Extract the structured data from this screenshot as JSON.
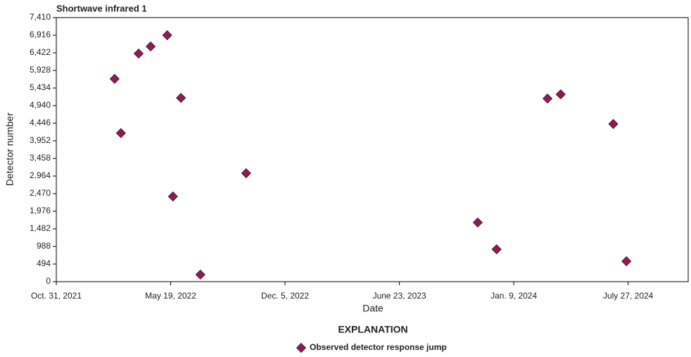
{
  "chart_data": {
    "type": "scatter",
    "title": "Shortwave infrared 1",
    "x_label": "Date",
    "y_label": "Detector number",
    "legend_title": "EXPLANATION",
    "xlim": [
      "2021-10-31",
      "2024-11-09"
    ],
    "xticks": [
      {
        "value": "2021-10-31",
        "label": "Oct. 31, 2021"
      },
      {
        "value": "2022-05-19",
        "label": "May 19, 2022"
      },
      {
        "value": "2022-12-05",
        "label": "Dec. 5, 2022"
      },
      {
        "value": "2023-06-23",
        "label": "June 23, 2023"
      },
      {
        "value": "2024-01-09",
        "label": "Jan. 9, 2024"
      },
      {
        "value": "2024-07-27",
        "label": "July 27, 2024"
      }
    ],
    "ylim": [
      0,
      7410
    ],
    "yticks": [
      0,
      494,
      988,
      {
        "value": 1482,
        "label": "1,482"
      },
      {
        "value": 1976,
        "label": "1,976"
      },
      {
        "value": 2470,
        "label": "2,470"
      },
      {
        "value": 2964,
        "label": "2,964"
      },
      {
        "value": 3458,
        "label": "3,458"
      },
      {
        "value": 3952,
        "label": "3,952"
      },
      {
        "value": 4446,
        "label": "4,446"
      },
      {
        "value": 4940,
        "label": "4,940"
      },
      {
        "value": 5434,
        "label": "5,434"
      },
      {
        "value": 5928,
        "label": "5,928"
      },
      {
        "value": 6422,
        "label": "6,422"
      },
      {
        "value": 6916,
        "label": "6,916"
      },
      {
        "value": 7410,
        "label": "7,410"
      }
    ],
    "series": [
      {
        "name": "Observed detector response jump",
        "color": "#8e1c55",
        "x": [
          "2022-02-10",
          "2022-02-21",
          "2022-03-24",
          "2022-04-14",
          "2022-05-13",
          "2022-05-23",
          "2022-06-06",
          "2022-07-10",
          "2022-09-28",
          "2023-11-07",
          "2023-12-10",
          "2024-03-08",
          "2024-03-31",
          "2024-07-01",
          "2024-07-24"
        ],
        "values": [
          5691,
          4169,
          6402,
          6600,
          6916,
          2391,
          5157,
          198,
          3043,
          1660,
          909,
          5138,
          5257,
          4426,
          573
        ]
      }
    ]
  }
}
